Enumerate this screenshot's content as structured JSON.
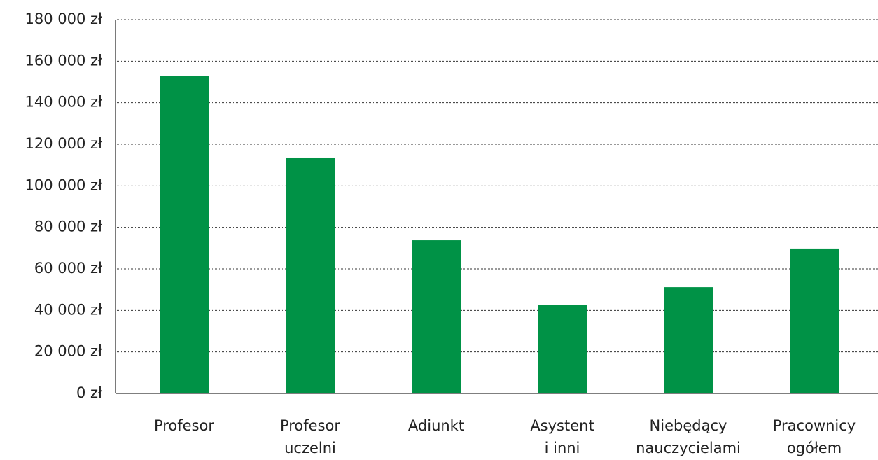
{
  "chart_data": {
    "type": "bar",
    "categories": [
      "Profesor",
      "Profesor\nuczelni",
      "Adiunkt",
      "Asystent\ni inni",
      "Niebędący\nnauczycielami",
      "Pracownicy\nogółem"
    ],
    "values": [
      153000,
      113600,
      73800,
      42800,
      51200,
      69800
    ],
    "color": "#009246",
    "ylim": [
      0,
      180000
    ],
    "yticks": [
      {
        "value": 0,
        "label": "0 zł"
      },
      {
        "value": 20000,
        "label": "20 000 zł"
      },
      {
        "value": 40000,
        "label": "40 000 zł"
      },
      {
        "value": 60000,
        "label": "60 000 zł"
      },
      {
        "value": 80000,
        "label": "80 000 zł"
      },
      {
        "value": 100000,
        "label": "100 000 zł"
      },
      {
        "value": 120000,
        "label": "120 000 zł"
      },
      {
        "value": 140000,
        "label": "140 000 zł"
      },
      {
        "value": 160000,
        "label": "160 000 zł"
      },
      {
        "value": 180000,
        "label": "180 000 zł"
      }
    ],
    "grid": true
  }
}
